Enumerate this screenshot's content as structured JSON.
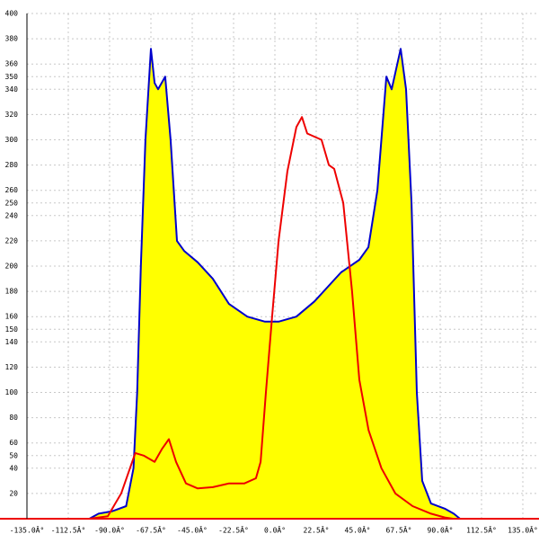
{
  "chart_data": {
    "type": "line",
    "xlim": [
      -135,
      135
    ],
    "ylim": [
      0,
      400
    ],
    "xticks": [
      {
        "value": -135,
        "label": "-135.0Â°"
      },
      {
        "value": -112.5,
        "label": "-112.5Â°"
      },
      {
        "value": -90,
        "label": "-90.0Â°"
      },
      {
        "value": -67.5,
        "label": "-67.5Â°"
      },
      {
        "value": -45,
        "label": "-45.0Â°"
      },
      {
        "value": -22.5,
        "label": "-22.5Â°"
      },
      {
        "value": 0,
        "label": "0.0Â°"
      },
      {
        "value": 22.5,
        "label": "22.5Â°"
      },
      {
        "value": 45,
        "label": "45.0Â°"
      },
      {
        "value": 67.5,
        "label": "67.5Â°"
      },
      {
        "value": 90,
        "label": "90.0Â°"
      },
      {
        "value": 112.5,
        "label": "112.5Â°"
      },
      {
        "value": 135,
        "label": "135.0Â°"
      }
    ],
    "yticks": [
      20,
      40,
      50,
      60,
      80,
      100,
      120,
      140,
      150,
      160,
      180,
      200,
      220,
      240,
      250,
      260,
      280,
      300,
      320,
      340,
      350,
      360,
      380,
      400
    ],
    "grid": true,
    "series": [
      {
        "color": "#0000cc",
        "fill": "#ffff00",
        "x": [
          -101,
          -96,
          -88.5,
          -81,
          -77,
          -75,
          -73,
          -70.5,
          -67.5,
          -65.5,
          -63.6,
          -59.7,
          -56.8,
          -53.3,
          -49.4,
          -42,
          -33.8,
          -25,
          -15,
          -5.4,
          2,
          11.7,
          21.5,
          36,
          46,
          50.9,
          55.8,
          60.7,
          63.6,
          68.5,
          71.4,
          74.4,
          77.3,
          80.2,
          85,
          92.5,
          97.4,
          100.8
        ],
        "values": [
          0,
          4,
          6,
          10,
          40,
          100,
          200,
          300,
          372,
          345,
          340,
          350,
          300,
          220,
          212,
          203,
          190,
          170,
          160,
          156,
          156,
          160,
          172,
          195,
          205,
          215,
          260,
          350,
          340,
          372,
          340,
          250,
          100,
          30,
          12,
          8,
          4,
          0
        ]
      },
      {
        "color": "#ee0000",
        "x": [
          -101,
          -91,
          -83.7,
          -76,
          -71.4,
          -65.5,
          -61.6,
          -57.7,
          -53.8,
          -48.4,
          -42,
          -33.8,
          -25,
          -16.6,
          -10.3,
          -7.8,
          -4.9,
          -1.5,
          2,
          6.8,
          11.7,
          14.7,
          17.6,
          25.4,
          29.4,
          32.3,
          37.2,
          42,
          46,
          51,
          58,
          65.6,
          75,
          85,
          92.5,
          97
        ],
        "values": [
          0,
          2,
          20,
          52,
          50,
          45,
          55,
          63,
          45,
          28,
          24,
          25,
          28,
          28,
          32,
          45,
          100,
          160,
          220,
          275,
          310,
          318,
          305,
          300,
          280,
          277,
          250,
          180,
          110,
          70,
          40,
          20,
          10,
          4,
          1,
          0
        ]
      }
    ]
  }
}
